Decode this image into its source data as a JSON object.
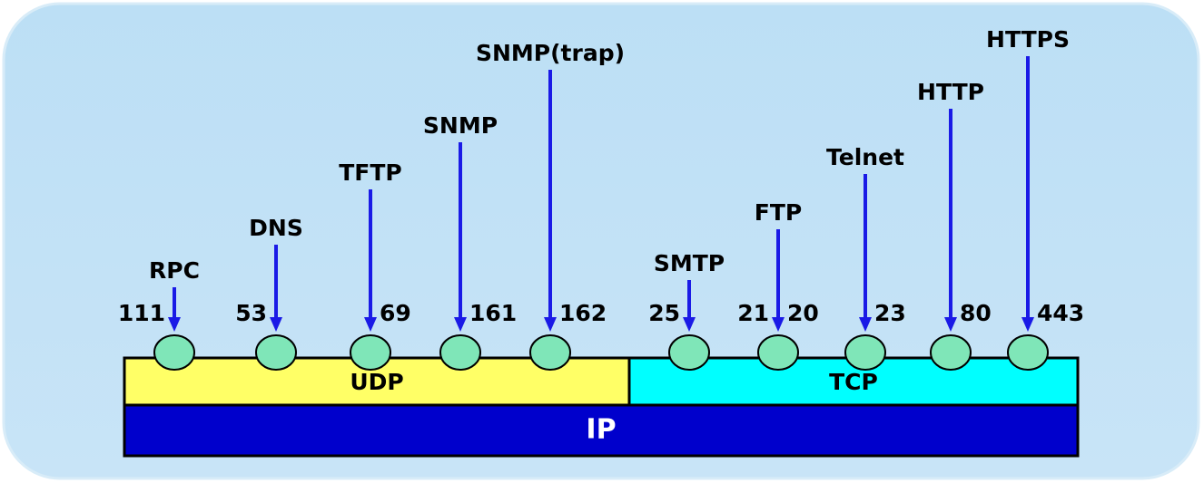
{
  "layers": {
    "udp": {
      "label": "UDP",
      "services": [
        {
          "name": "RPC",
          "ports": [
            111
          ]
        },
        {
          "name": "DNS",
          "ports": [
            53
          ]
        },
        {
          "name": "TFTP",
          "ports": [
            69
          ]
        },
        {
          "name": "SNMP",
          "ports": [
            161
          ]
        },
        {
          "name": "SNMP(trap)",
          "ports": [
            162
          ]
        }
      ]
    },
    "tcp": {
      "label": "TCP",
      "services": [
        {
          "name": "SMTP",
          "ports": [
            25
          ]
        },
        {
          "name": "FTP",
          "ports": [
            21,
            20
          ]
        },
        {
          "name": "Telnet",
          "ports": [
            23
          ]
        },
        {
          "name": "HTTP",
          "ports": [
            80
          ]
        },
        {
          "name": "HTTPS",
          "ports": [
            443
          ]
        }
      ]
    },
    "ip": {
      "label": "IP"
    }
  }
}
